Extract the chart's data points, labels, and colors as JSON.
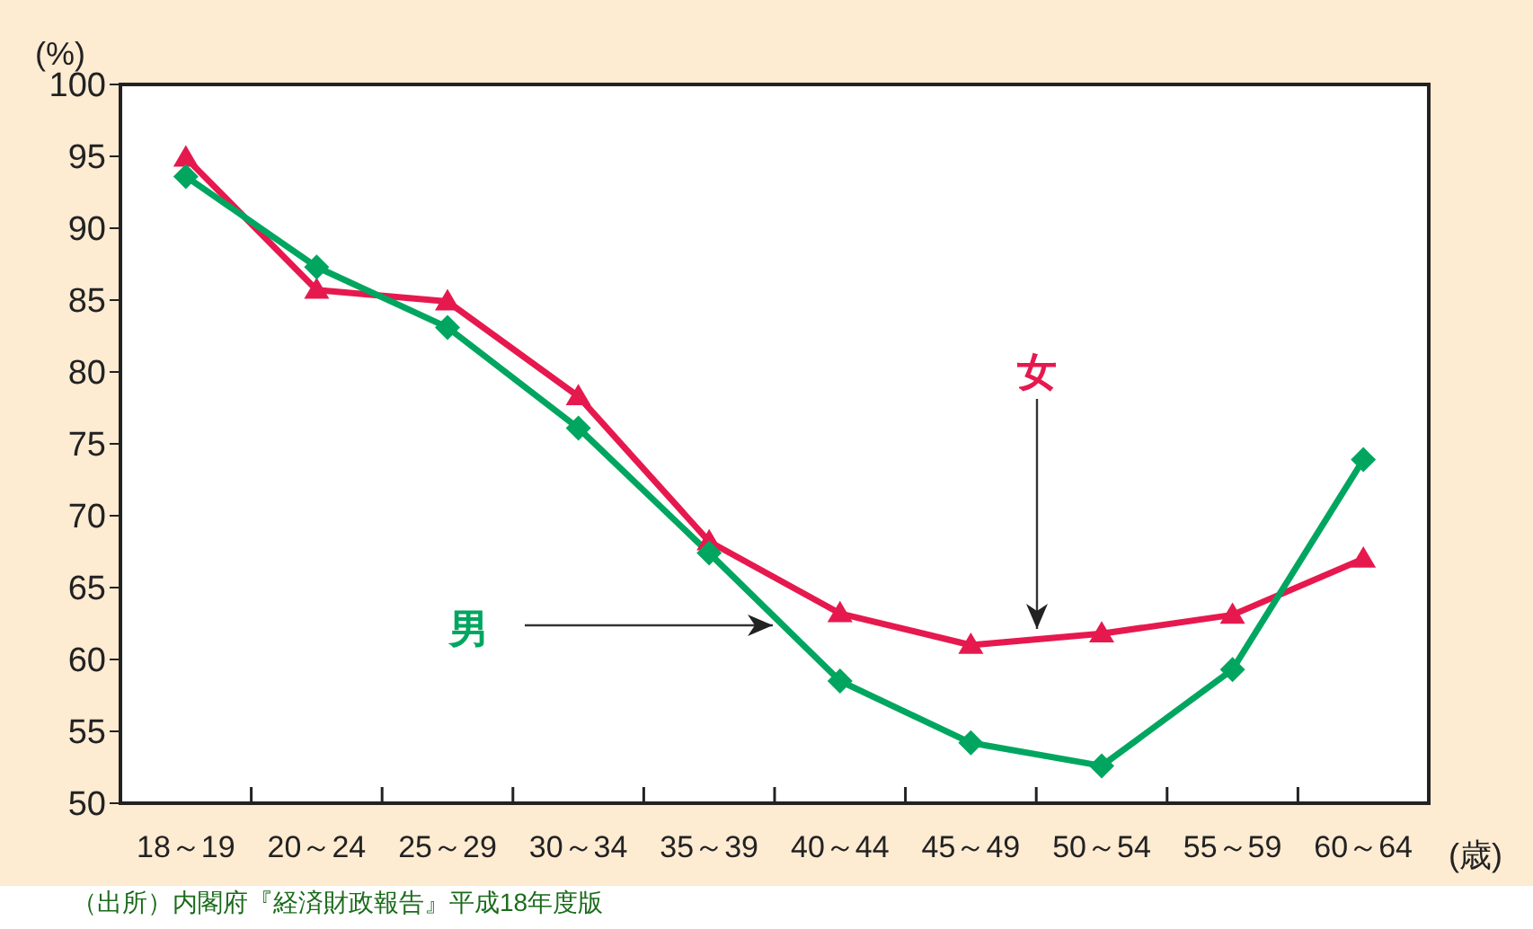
{
  "chart_data": {
    "type": "line",
    "ylabel": "(%)",
    "xlabel": "(歳)",
    "categories": [
      "18～19",
      "20～24",
      "25～29",
      "30～34",
      "35～39",
      "40～44",
      "45～49",
      "50～54",
      "55～59",
      "60～64"
    ],
    "series": [
      {
        "name": "女",
        "color": "#e6194f",
        "marker": "triangle",
        "values": [
          94.9,
          85.7,
          84.9,
          78.3,
          68.2,
          63.2,
          61.0,
          61.8,
          63.1,
          67.0
        ]
      },
      {
        "name": "男",
        "color": "#00a660",
        "marker": "diamond",
        "values": [
          93.6,
          87.3,
          83.1,
          76.1,
          67.4,
          58.5,
          54.2,
          52.6,
          59.3,
          73.9
        ]
      }
    ],
    "ylim": [
      50,
      100
    ],
    "yticks": [
      50,
      55,
      60,
      65,
      70,
      75,
      80,
      85,
      90,
      95,
      100
    ],
    "grid": false,
    "legend": false,
    "annotations": [
      "（出所）内閣府『経済財政報告』平成18年度版"
    ]
  }
}
